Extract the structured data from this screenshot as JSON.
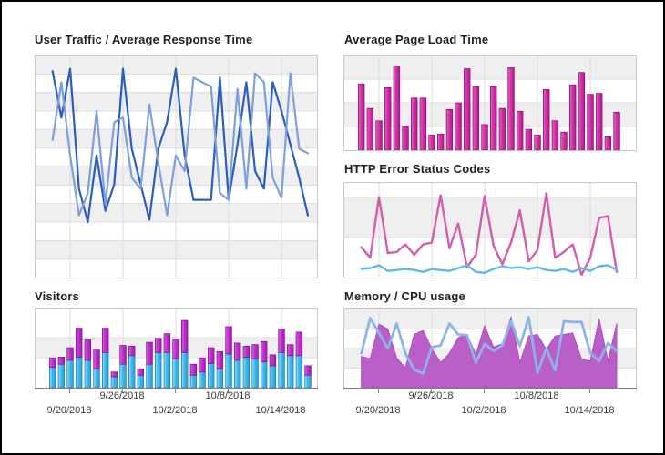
{
  "palette": {
    "band_gray": "#efefef",
    "gridline": "#dcdcdc",
    "plot_border": "#c8c8c8",
    "axis_line": "#7f7f7f",
    "axis_label": "#3a3a3a",
    "title": "#1f1f1f",
    "window_border": "#000000"
  },
  "chart_data": [
    {
      "id": "user-traffic",
      "type": "line",
      "title": "User Traffic / Average Response Time",
      "grid": true,
      "legend": false,
      "x_tick_labels": [],
      "series": [
        {
          "name": "line-dark-blue",
          "color": "#2a5dc2",
          "values_pct": [
            93,
            72,
            94,
            40,
            25,
            55,
            30,
            42,
            94,
            58,
            42,
            26,
            58,
            70,
            94,
            55,
            35,
            35,
            35,
            90,
            35,
            60,
            88,
            48,
            40,
            88,
            75,
            60,
            45,
            28
          ]
        },
        {
          "name": "line-light-blue",
          "color": "#7da0dd",
          "values_pct": [
            62,
            88,
            55,
            28,
            38,
            75,
            33,
            70,
            72,
            45,
            40,
            78,
            52,
            28,
            55,
            48,
            90,
            88,
            86,
            38,
            35,
            85,
            40,
            92,
            88,
            45,
            36,
            92,
            58,
            56
          ]
        }
      ]
    },
    {
      "id": "avg-page-load-time",
      "type": "bar",
      "title": "Average Page Load Time",
      "grid": true,
      "legend": false,
      "x_tick_labels": [],
      "bar_color": "#cf34a6",
      "bar_fill_light": "#e868c4",
      "bar_fill_dark": "#b81690",
      "bar_border": "#8e1273",
      "values_pct": [
        70,
        44,
        31,
        66,
        89,
        25,
        55,
        55,
        16,
        17,
        43,
        50,
        86,
        67,
        27,
        67,
        44,
        87,
        41,
        22,
        16,
        64,
        31,
        19,
        69,
        82,
        59,
        60,
        14,
        40
      ]
    },
    {
      "id": "http-error-status-codes",
      "type": "line",
      "title": "HTTP Error Status Codes",
      "grid": true,
      "legend": false,
      "x_tick_labels": [],
      "series": [
        {
          "name": "line-pink",
          "color": "#d45cac",
          "values_pct": [
            32,
            21,
            85,
            26,
            27,
            35,
            24,
            35,
            37,
            87,
            31,
            57,
            11,
            24,
            86,
            34,
            14,
            37,
            71,
            17,
            29,
            89,
            21,
            27,
            35,
            3,
            21,
            63,
            65,
            6
          ]
        },
        {
          "name": "line-light-blue",
          "color": "#62b9e8",
          "values_pct": [
            9,
            10,
            13,
            7,
            8,
            9,
            8,
            6,
            9,
            8,
            7,
            10,
            13,
            6,
            5,
            9,
            12,
            10,
            11,
            9,
            11,
            8,
            7,
            9,
            6,
            10,
            7,
            12,
            13,
            8
          ]
        }
      ]
    },
    {
      "id": "visitors",
      "type": "stacked-bar",
      "title": "Visitors",
      "grid": true,
      "legend": false,
      "x_tick_labels": [
        "9/20/2018",
        "9/26/2018",
        "10/2/2018",
        "10/8/2018",
        "10/14/2018"
      ],
      "series": [
        {
          "name": "visitors-bottom-cyan",
          "color": "#3fb9e8",
          "fill_light": "#9ce1f8",
          "fill_dark": "#2aa2dc",
          "border": "#1a7fc4",
          "values_pct": [
            26,
            30,
            35,
            39,
            35,
            24,
            45,
            14,
            30,
            41,
            16,
            30,
            45,
            45,
            37,
            45,
            16,
            20,
            31,
            24,
            43,
            35,
            39,
            37,
            33,
            28,
            45,
            41,
            41,
            16
          ]
        },
        {
          "name": "visitors-top-magenta",
          "color": "#c32ecd",
          "fill_light": "#dd67e2",
          "fill_dark": "#a81cba",
          "border": "#7d1694",
          "values_pct": [
            12,
            9,
            16,
            37,
            26,
            24,
            31,
            6,
            24,
            12,
            8,
            28,
            18,
            24,
            24,
            41,
            14,
            18,
            20,
            22,
            35,
            22,
            14,
            18,
            26,
            14,
            30,
            14,
            30,
            12
          ]
        }
      ]
    },
    {
      "id": "memory-cpu-usage",
      "type": "area-line",
      "title": "Memory / CPU usage",
      "grid": true,
      "legend": false,
      "x_tick_labels": [
        "9/20/2018",
        "9/26/2018",
        "10/2/2018",
        "10/8/2018",
        "10/14/2018"
      ],
      "series": [
        {
          "name": "area-purple",
          "color": "#ba5ec8",
          "border": "#aa4cbb",
          "values_pct": [
            40,
            37,
            81,
            75,
            38,
            25,
            68,
            73,
            50,
            32,
            44,
            64,
            68,
            42,
            79,
            52,
            56,
            90,
            32,
            66,
            68,
            49,
            66,
            68,
            70,
            36,
            34,
            88,
            34,
            82
          ]
        },
        {
          "name": "line-light-blue",
          "color": "#8cb4e6",
          "values_pct": [
            44,
            89,
            70,
            50,
            82,
            44,
            23,
            18,
            52,
            54,
            82,
            68,
            67,
            32,
            56,
            47,
            54,
            85,
            53,
            90,
            19,
            50,
            22,
            85,
            84,
            84,
            44,
            34,
            57,
            47
          ]
        }
      ]
    }
  ]
}
